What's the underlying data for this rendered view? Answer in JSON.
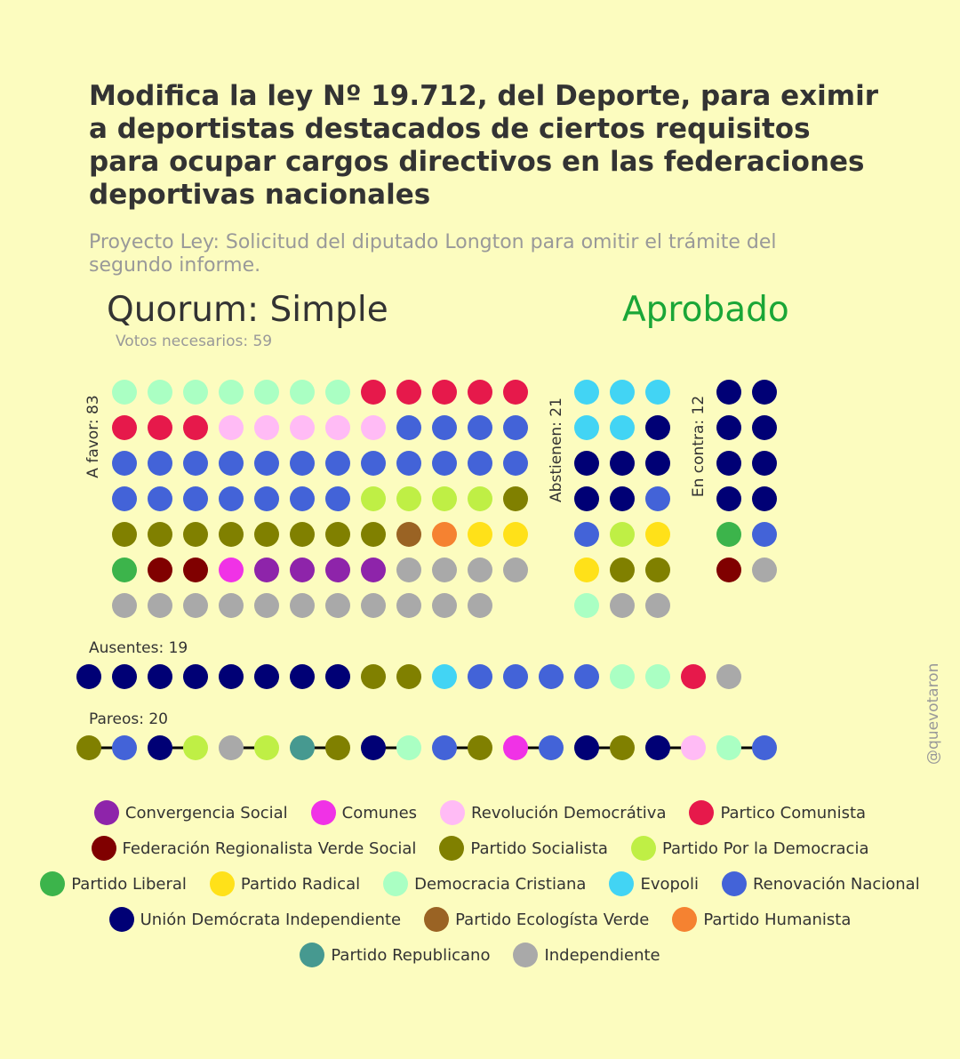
{
  "header": {
    "title": "Modifica la ley Nº 19.712, del Deporte, para eximir a deportistas destacados de ciertos requisitos para ocupar cargos directivos en las federaciones deportivas nacionales",
    "subtitle": "Proyecto Ley: Solicitud del diputado Longton para omitir el trámite del segundo informe.",
    "quorum": "Quorum: Simple",
    "result": "Aprobado",
    "result_color": "#1AA637",
    "votes_needed": "Votos necesarios: 59"
  },
  "watermark": "@quevotaron",
  "parties": {
    "CS": {
      "name": "Convergencia Social",
      "color": "#8E24AA"
    },
    "COM": {
      "name": "Comunes",
      "color": "#F032E6"
    },
    "RD": {
      "name": "Revolución Democrátiva",
      "color": "#FFBBF5"
    },
    "PC": {
      "name": "Partico Comunista",
      "color": "#E6194B"
    },
    "FRVS": {
      "name": "Federación Regionalista Verde Social",
      "color": "#800000"
    },
    "PS": {
      "name": "Partido Socialista",
      "color": "#808000"
    },
    "PPD": {
      "name": "Partido Por la Democracia",
      "color": "#BFEF45"
    },
    "PL": {
      "name": "Partido Liberal",
      "color": "#3CB44B"
    },
    "PR": {
      "name": "Partido Radical",
      "color": "#FFE119"
    },
    "DC": {
      "name": "Democracia Cristiana",
      "color": "#AAFFC3"
    },
    "EVO": {
      "name": "Evopoli",
      "color": "#42D4F4"
    },
    "RN": {
      "name": "Renovación Nacional",
      "color": "#4363D8"
    },
    "UDI": {
      "name": "Unión Demócrata Independiente",
      "color": "#000075"
    },
    "PEV": {
      "name": "Partido Ecologísta Verde",
      "color": "#9A6324"
    },
    "PH": {
      "name": "Partido Humanista",
      "color": "#F58231"
    },
    "REP": {
      "name": "Partido Republicano",
      "color": "#469990"
    },
    "IND": {
      "name": "Independiente",
      "color": "#A9A9A9"
    }
  },
  "legend_order": [
    "CS",
    "COM",
    "RD",
    "PC",
    "FRVS",
    "PS",
    "PPD",
    "PL",
    "PR",
    "DC",
    "EVO",
    "RN",
    "UDI",
    "PEV",
    "PH",
    "REP",
    "IND"
  ],
  "chart_data": {
    "type": "waffle",
    "title": "Modifica la ley Nº 19.712, del Deporte, para eximir a deportistas destacados de ciertos requisitos para ocupar cargos directivos en las federaciones deportivas nacionales",
    "blocks": [
      {
        "name": "a_favor",
        "label": "A favor: 83",
        "count": 83,
        "seats": [
          "DC",
          "DC",
          "DC",
          "DC",
          "DC",
          "DC",
          "DC",
          "PC",
          "PC",
          "PC",
          "PC",
          "PC",
          "PC",
          "PC",
          "PC",
          "RD",
          "RD",
          "RD",
          "RD",
          "RD",
          "RN",
          "RN",
          "RN",
          "RN",
          "RN",
          "RN",
          "RN",
          "RN",
          "RN",
          "RN",
          "RN",
          "RN",
          "RN",
          "RN",
          "RN",
          "RN",
          "RN",
          "RN",
          "RN",
          "RN",
          "RN",
          "RN",
          "RN",
          "PPD",
          "PPD",
          "PPD",
          "PPD",
          "PS",
          "PS",
          "PS",
          "PS",
          "PS",
          "PS",
          "PS",
          "PS",
          "PS",
          "PEV",
          "PH",
          "PR",
          "PR",
          "PL",
          "FRVS",
          "FRVS",
          "COM",
          "CS",
          "CS",
          "CS",
          "CS",
          "IND",
          "IND",
          "IND",
          "IND",
          "IND",
          "IND",
          "IND",
          "IND",
          "IND",
          "IND",
          "IND",
          "IND",
          "IND",
          "IND",
          "IND"
        ]
      },
      {
        "name": "abstienen",
        "label": "Abstienen: 21",
        "count": 21,
        "seats": [
          "EVO",
          "EVO",
          "EVO",
          "EVO",
          "EVO",
          "UDI",
          "UDI",
          "UDI",
          "UDI",
          "UDI",
          "UDI",
          "RN",
          "RN",
          "PPD",
          "PR",
          "PR",
          "PS",
          "PS",
          "DC",
          "IND",
          "IND"
        ]
      },
      {
        "name": "en_contra",
        "label": "En contra: 12",
        "count": 12,
        "seats": [
          "UDI",
          "UDI",
          "UDI",
          "UDI",
          "UDI",
          "UDI",
          "UDI",
          "UDI",
          "PL",
          "RN",
          "FRVS",
          "IND"
        ]
      },
      {
        "name": "ausentes",
        "label": "Ausentes: 19",
        "count": 19,
        "seats": [
          "UDI",
          "UDI",
          "UDI",
          "UDI",
          "UDI",
          "UDI",
          "UDI",
          "UDI",
          "PS",
          "PS",
          "EVO",
          "RN",
          "RN",
          "RN",
          "RN",
          "DC",
          "DC",
          "PC",
          "IND"
        ]
      },
      {
        "name": "pareos",
        "label": "Pareos: 20",
        "count": 20,
        "pairs": [
          [
            "PS",
            "RN"
          ],
          [
            "UDI",
            "PPD"
          ],
          [
            "IND",
            "PPD"
          ],
          [
            "REP",
            "PS"
          ],
          [
            "UDI",
            "DC"
          ],
          [
            "RN",
            "PS"
          ],
          [
            "COM",
            "RN"
          ],
          [
            "UDI",
            "PS"
          ],
          [
            "UDI",
            "RD"
          ],
          [
            "DC",
            "RN"
          ]
        ]
      }
    ]
  }
}
